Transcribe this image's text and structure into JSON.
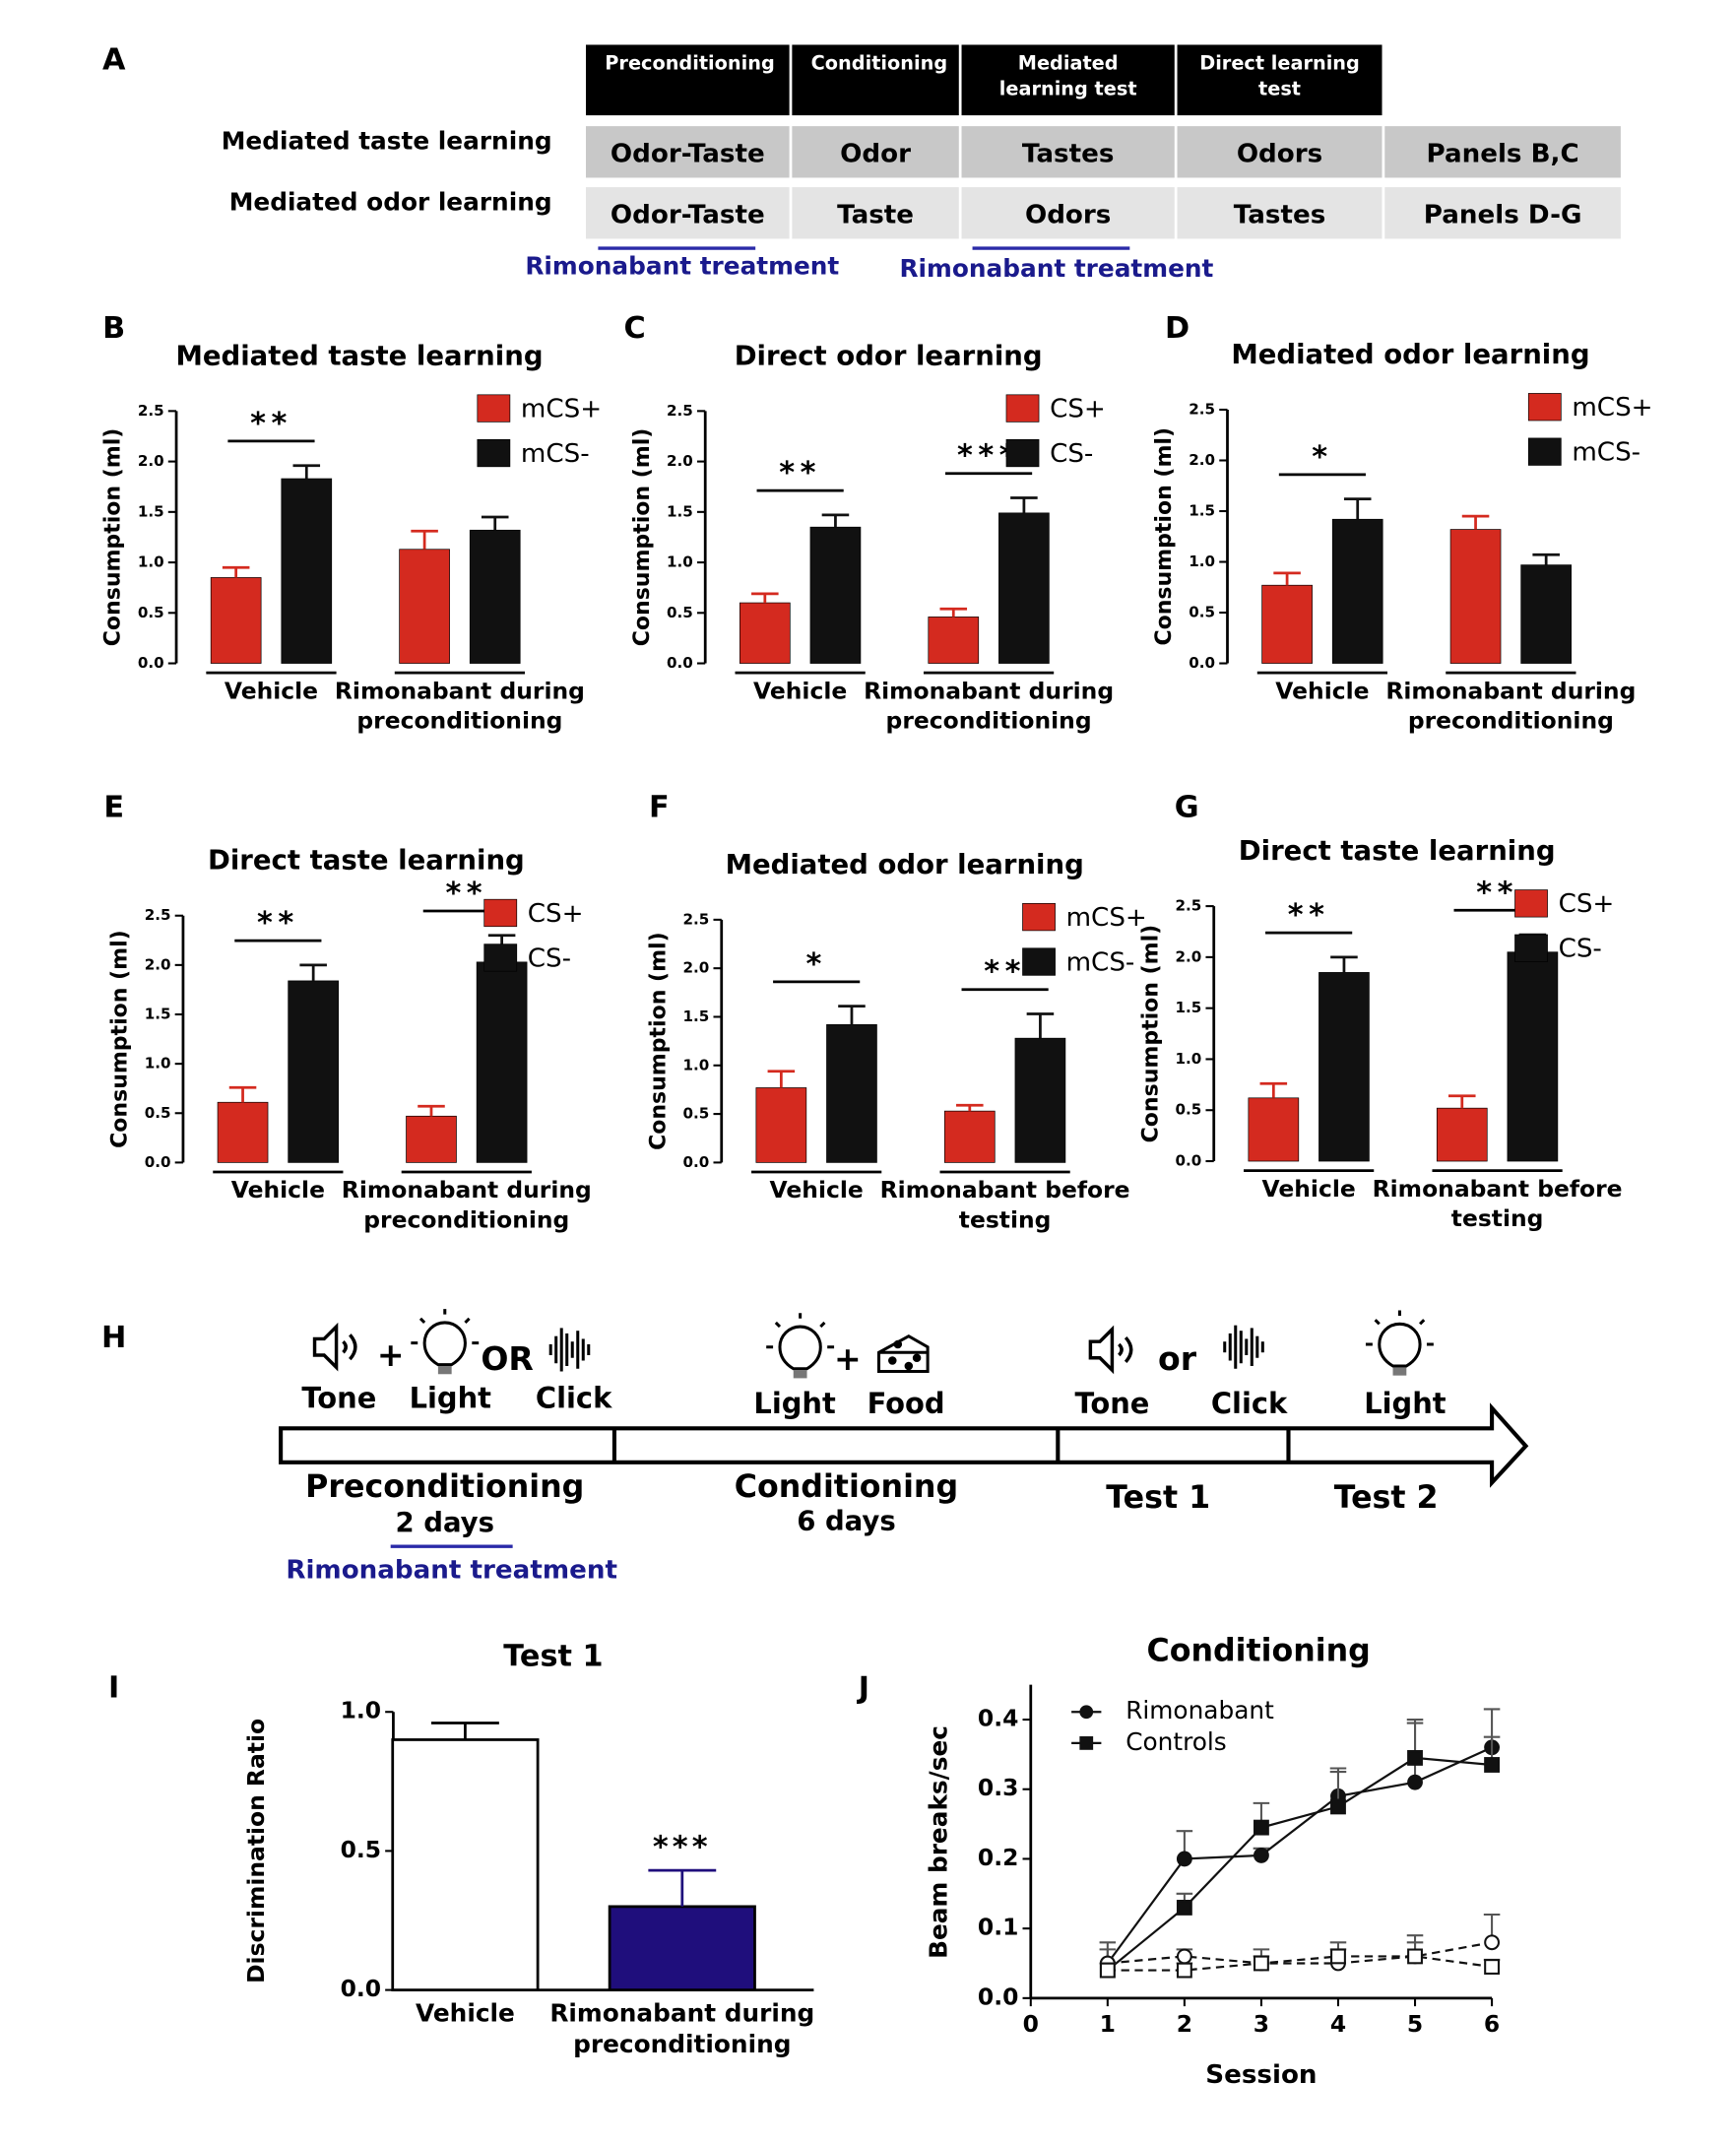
{
  "panel_labels": [
    "A",
    "B",
    "C",
    "D",
    "E",
    "F",
    "G",
    "H",
    "I",
    "J"
  ],
  "panel_a": {
    "columns": [
      "Preconditioning",
      "Conditioning",
      "Mediated learning test",
      "Direct learning test"
    ],
    "rows": [
      {
        "label": "Mediated taste learning",
        "cells": [
          "Odor-Taste",
          "Odor",
          "Tastes",
          "Odors",
          "Panels B,C"
        ]
      },
      {
        "label": "Mediated odor learning",
        "cells": [
          "Odor-Taste",
          "Taste",
          "Odors",
          "Tastes",
          "Panels D-G"
        ]
      }
    ],
    "treatment_notes": [
      "Rimonabant treatment",
      "Rimonabant treatment"
    ]
  },
  "chart_data": [
    {
      "type": "bar",
      "title": "Mediated taste learning",
      "ylabel": "Consumption (ml)",
      "categories": [
        "Vehicle",
        "Rimonabant during preconditioning"
      ],
      "series": [
        {
          "name": "mCS+",
          "color": "#d42a1f",
          "values": [
            0.85,
            1.13
          ],
          "errors": [
            0.1,
            0.18
          ]
        },
        {
          "name": "mCS-",
          "color": "#111111",
          "values": [
            1.83,
            1.32
          ],
          "errors": [
            0.13,
            0.13
          ]
        }
      ],
      "annotations": [
        "**",
        null
      ],
      "ylim": [
        0,
        2.5
      ],
      "yticks": [
        {
          "value": 0,
          "label": "0.0"
        },
        0.5,
        {
          "value": 1,
          "label": "1.0"
        },
        1.5,
        {
          "value": 2,
          "label": "2.0"
        },
        2.5
      ]
    },
    {
      "type": "bar",
      "title": "Direct odor learning",
      "ylabel": "Consumption (ml)",
      "categories": [
        "Vehicle",
        "Rimonabant during preconditioning"
      ],
      "series": [
        {
          "name": "CS+",
          "color": "#d42a1f",
          "values": [
            0.6,
            0.46
          ],
          "errors": [
            0.09,
            0.08
          ]
        },
        {
          "name": "CS-",
          "color": "#111111",
          "values": [
            1.35,
            1.49
          ],
          "errors": [
            0.12,
            0.15
          ]
        }
      ],
      "annotations": [
        "**",
        "***"
      ],
      "ylim": [
        0,
        2.5
      ],
      "yticks": [
        {
          "value": 0,
          "label": "0.0"
        },
        0.5,
        {
          "value": 1,
          "label": "1.0"
        },
        1.5,
        {
          "value": 2,
          "label": "2.0"
        },
        2.5
      ]
    },
    {
      "type": "bar",
      "title": "Mediated odor learning",
      "ylabel": "Consumption (ml)",
      "categories": [
        "Vehicle",
        "Rimonabant during preconditioning"
      ],
      "series": [
        {
          "name": "mCS+",
          "color": "#d42a1f",
          "values": [
            0.77,
            1.32
          ],
          "errors": [
            0.12,
            0.13
          ]
        },
        {
          "name": "mCS-",
          "color": "#111111",
          "values": [
            1.42,
            0.97
          ],
          "errors": [
            0.2,
            0.1
          ]
        }
      ],
      "annotations": [
        "*",
        null
      ],
      "ylim": [
        0,
        2.5
      ],
      "yticks": [
        {
          "value": 0,
          "label": "0.0"
        },
        0.5,
        {
          "value": 1,
          "label": "1.0"
        },
        1.5,
        {
          "value": 2,
          "label": "2.0"
        },
        2.5
      ]
    },
    {
      "type": "bar",
      "title": "Direct taste learning",
      "ylabel": "Consumption (ml)",
      "categories": [
        "Vehicle",
        "Rimonabant during preconditioning"
      ],
      "series": [
        {
          "name": "CS+",
          "color": "#d42a1f",
          "values": [
            0.61,
            0.47
          ],
          "errors": [
            0.15,
            0.1
          ]
        },
        {
          "name": "CS-",
          "color": "#111111",
          "values": [
            1.84,
            2.03
          ],
          "errors": [
            0.16,
            0.27
          ]
        }
      ],
      "annotations": [
        "**",
        "**"
      ],
      "ylim": [
        0,
        2.5
      ],
      "yticks": [
        {
          "value": 0,
          "label": "0.0"
        },
        0.5,
        {
          "value": 1,
          "label": "1.0"
        },
        1.5,
        {
          "value": 2,
          "label": "2.0"
        },
        2.5
      ]
    },
    {
      "type": "bar",
      "title": "Mediated odor learning",
      "ylabel": "Consumption (ml)",
      "categories": [
        "Vehicle",
        "Rimonabant before testing"
      ],
      "series": [
        {
          "name": "mCS+",
          "color": "#d42a1f",
          "values": [
            0.77,
            0.53
          ],
          "errors": [
            0.17,
            0.06
          ]
        },
        {
          "name": "mCS-",
          "color": "#111111",
          "values": [
            1.42,
            1.28
          ],
          "errors": [
            0.19,
            0.25
          ]
        }
      ],
      "annotations": [
        "*",
        "**"
      ],
      "ylim": [
        0,
        2.5
      ],
      "yticks": [
        {
          "value": 0,
          "label": "0.0"
        },
        0.5,
        {
          "value": 1,
          "label": "1.0"
        },
        1.5,
        {
          "value": 2,
          "label": "2.0"
        },
        2.5
      ]
    },
    {
      "type": "bar",
      "title": "Direct taste learning",
      "ylabel": "Consumption (ml)",
      "categories": [
        "Vehicle",
        "Rimonabant before testing"
      ],
      "series": [
        {
          "name": "CS+",
          "color": "#d42a1f",
          "values": [
            0.62,
            0.52
          ],
          "errors": [
            0.14,
            0.12
          ]
        },
        {
          "name": "CS-",
          "color": "#111111",
          "values": [
            1.85,
            2.05
          ],
          "errors": [
            0.15,
            0.17
          ]
        }
      ],
      "annotations": [
        "**",
        "**"
      ],
      "ylim": [
        0,
        2.5
      ],
      "yticks": [
        {
          "value": 0,
          "label": "0.0"
        },
        0.5,
        {
          "value": 1,
          "label": "1.0"
        },
        1.5,
        {
          "value": 2,
          "label": "2.0"
        },
        2.5
      ]
    },
    {
      "type": "bar",
      "title": "Test 1",
      "ylabel": "Discrimination Ratio",
      "categories": [
        "Vehicle",
        "Rimonabant during preconditioning"
      ],
      "series": [
        {
          "colors": [
            "#ffffff",
            "#1f0e7c"
          ],
          "values": [
            0.9,
            0.3
          ],
          "errors": [
            0.06,
            0.13
          ]
        }
      ],
      "annotations": [
        null,
        "***"
      ],
      "ylim": [
        0,
        1
      ],
      "yticks": [
        {
          "value": 0,
          "label": "0.0"
        },
        0.5,
        {
          "value": 1,
          "label": "1.0"
        }
      ]
    },
    {
      "type": "line",
      "title": "Conditioning",
      "xlabel": "Session",
      "ylabel": "Beam breaks/sec",
      "x": [
        1,
        2,
        3,
        4,
        5,
        6
      ],
      "series": [
        {
          "name": "Rimonabant",
          "color": "#111111",
          "marker": "circle",
          "filled": true,
          "dashed": false,
          "values": [
            0.05,
            0.2,
            0.205,
            0.29,
            0.31,
            0.36
          ],
          "errors": [
            0.03,
            0.04,
            0.01,
            0.04,
            0.09,
            0.055
          ]
        },
        {
          "name": "Controls",
          "color": "#111111",
          "marker": "square",
          "filled": true,
          "dashed": false,
          "values": [
            0.04,
            0.13,
            0.245,
            0.275,
            0.345,
            0.335
          ],
          "errors": [
            0.01,
            0.02,
            0.035,
            0.05,
            0.05,
            0.04
          ]
        },
        {
          "color": "#111111",
          "marker": "circle",
          "filled": false,
          "dashed": true,
          "values": [
            0.05,
            0.06,
            0.05,
            0.05,
            0.06,
            0.08
          ],
          "errors": [
            0.02,
            0.01,
            0.01,
            0.02,
            0.03,
            0.04
          ]
        },
        {
          "color": "#111111",
          "marker": "square",
          "filled": false,
          "dashed": true,
          "values": [
            0.04,
            0.04,
            0.05,
            0.06,
            0.06,
            0.045
          ],
          "errors": [
            0.01,
            0.01,
            0.02,
            0.02,
            0.02,
            0.01
          ]
        }
      ],
      "xlim": [
        0,
        6
      ],
      "xticks": [
        0,
        1,
        2,
        3,
        4,
        5,
        6
      ],
      "ylim": [
        0,
        0.45
      ],
      "yticks": [
        {
          "value": 0,
          "label": "0.0"
        },
        0.1,
        0.2,
        0.3,
        0.4
      ]
    }
  ],
  "panel_h": {
    "cue_labels": [
      "Tone",
      "Light",
      "Click",
      "Light",
      "Food",
      "Tone",
      "Click",
      "Light"
    ],
    "connectors": [
      "+",
      "OR",
      "+",
      "or"
    ],
    "stages": [
      {
        "name": "Preconditioning",
        "duration": "2 days"
      },
      {
        "name": "Conditioning",
        "duration": "6 days"
      },
      {
        "name": "Test 1"
      },
      {
        "name": "Test 2"
      }
    ],
    "treatment": "Rimonabant treatment"
  }
}
